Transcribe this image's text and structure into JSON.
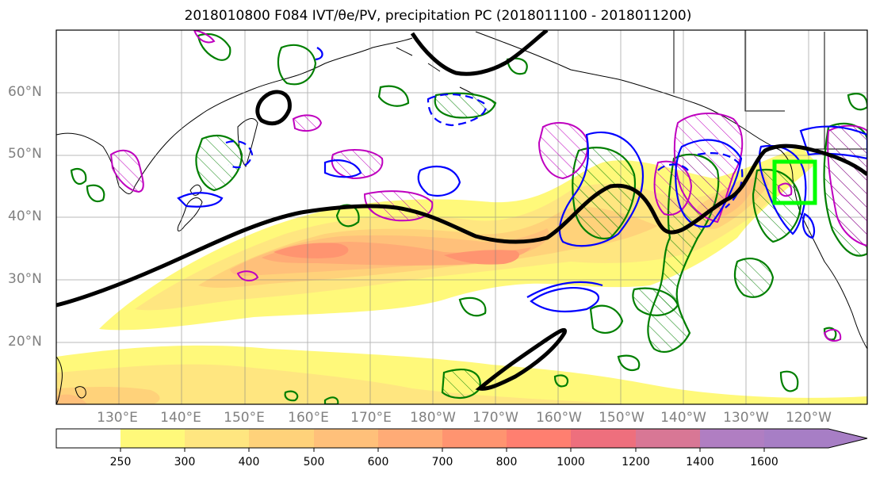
{
  "title": "2018010800 F084 IVT/θe/PV, precipitation PC (2018011100 - 2018011200)",
  "lat_labels": [
    "60°N",
    "50°N",
    "40°N",
    "30°N",
    "20°N"
  ],
  "lon_labels": [
    "130°E",
    "140°E",
    "150°E",
    "160°E",
    "170°E",
    "180°W",
    "170°W",
    "160°W",
    "150°W",
    "140°W",
    "130°W",
    "120°W"
  ],
  "colorbar": {
    "ticks": [
      "250",
      "300",
      "400",
      "500",
      "600",
      "700",
      "800",
      "1000",
      "1200",
      "1400",
      "1600"
    ],
    "colors": [
      "#ffffff",
      "#fff97a",
      "#ffe680",
      "#ffd27a",
      "#ffc07a",
      "#ffab76",
      "#ff9470",
      "#ff7f70",
      "#ee6f7d",
      "#d87795",
      "#b07ec2"
    ]
  },
  "colors": {
    "ivt_axis": "#000000",
    "precip_green": "#007f00",
    "theta_blue": "#0000ff",
    "pv_magenta": "#bf00bf",
    "target_box": "#00ff00",
    "coast": "#000000"
  }
}
